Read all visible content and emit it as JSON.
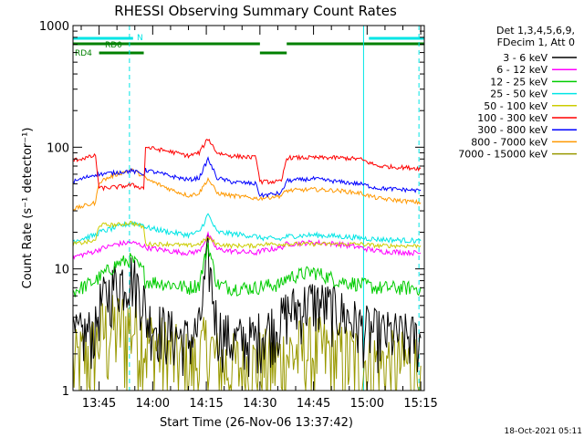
{
  "chart_data": {
    "type": "line",
    "title": "RHESSI Observing Summary Count Rates",
    "xlabel": "Start Time (26-Nov-06 13:37:42)",
    "ylabel": "Count Rate (s⁻¹ detector⁻¹)",
    "yscale": "log",
    "ylim": [
      1,
      1000
    ],
    "xlim": [
      "13:37:42",
      "15:16:00"
    ],
    "x_tick_labels": [
      "13:45",
      "14:00",
      "14:15",
      "14:30",
      "14:45",
      "15:00",
      "15:15"
    ],
    "y_tick_labels": [
      "1",
      "10",
      "100",
      "1000"
    ],
    "grid": false,
    "legend_header": [
      "Det 1,3,4,5,6,9,",
      "FDecim 1, Att 0"
    ],
    "legend_position": "right",
    "footer_timestamp": "18-Oct-2021 05:11",
    "flags": [
      {
        "label": "N",
        "color": "#00e5e5",
        "segments": [
          [
            "13:37:42",
            "13:54:30"
          ],
          [
            "15:00:30",
            "15:16:00"
          ]
        ]
      },
      {
        "label": "RD0",
        "color": "#008000",
        "segments": [
          [
            "13:37:42",
            "14:30:00"
          ],
          [
            "14:37:30",
            "15:16:00"
          ]
        ]
      },
      {
        "label": "RD4",
        "color": "#008000",
        "segments": [
          [
            "13:45:00",
            "13:57:30"
          ],
          [
            "14:30:00",
            "14:37:30"
          ]
        ]
      }
    ],
    "vertical_markers": [
      {
        "time": "13:37:42",
        "style": "solid",
        "color": "#00e5e5"
      },
      {
        "time": "13:53:30",
        "style": "dashed",
        "color": "#00e5e5"
      },
      {
        "time": "14:59:00",
        "style": "solid",
        "color": "#00e5e5"
      },
      {
        "time": "15:14:30",
        "style": "dashed",
        "color": "#00e5e5"
      }
    ],
    "x": [
      "13:37:42",
      "13:44:00",
      "13:45:00",
      "13:50:00",
      "13:54:00",
      "13:57:30",
      "13:58:00",
      "14:05:00",
      "14:10:00",
      "14:13:00",
      "14:15:30",
      "14:18:00",
      "14:22:00",
      "14:29:00",
      "14:30:00",
      "14:36:00",
      "14:37:30",
      "14:45:00",
      "14:52:00",
      "14:58:00",
      "15:03:00",
      "15:15:00"
    ],
    "series": [
      {
        "name": "3 - 6 keV",
        "color": "#000000",
        "values": [
          2.7,
          3.2,
          5,
          8,
          9,
          6,
          4,
          3,
          2.6,
          3.2,
          13,
          3.4,
          2.6,
          2.7,
          3,
          3.8,
          4.5,
          5.5,
          4.6,
          3.4,
          3,
          2.7
        ]
      },
      {
        "name": "6 - 12 keV",
        "color": "#ff00ff",
        "values": [
          12.5,
          14,
          14.5,
          16,
          16.5,
          15.5,
          15,
          14,
          13.5,
          14,
          19,
          14.5,
          14,
          13.5,
          14,
          15,
          16,
          16.5,
          16,
          15,
          14,
          13.5
        ]
      },
      {
        "name": "12 - 25 keV",
        "color": "#00cc00",
        "values": [
          6.5,
          8,
          8.5,
          11,
          12,
          9.5,
          8,
          7.5,
          7,
          7.5,
          16,
          7.5,
          7,
          7,
          7.2,
          7.5,
          8.5,
          9.5,
          8,
          7.5,
          7,
          7
        ]
      },
      {
        "name": "25 - 50 keV",
        "color": "#00e5e5",
        "values": [
          17,
          19,
          20,
          22,
          24,
          23,
          22,
          20,
          19,
          20,
          28,
          20,
          19.5,
          18.5,
          18,
          17.5,
          18.5,
          19,
          18.5,
          18,
          17.5,
          17
        ]
      },
      {
        "name": "50 - 100 keV",
        "color": "#cccc00",
        "values": [
          16,
          17,
          23,
          23,
          24,
          22,
          16,
          16,
          15.5,
          16,
          18,
          16,
          15.5,
          15.5,
          16,
          16,
          16,
          16,
          16,
          16,
          15.5,
          15.5
        ]
      },
      {
        "name": "100 - 300 keV",
        "color": "#ff0000",
        "values": [
          78,
          85,
          46,
          47,
          49,
          46,
          100,
          92,
          85,
          90,
          118,
          90,
          85,
          82,
          52,
          52,
          82,
          82,
          82,
          80,
          70,
          67
        ]
      },
      {
        "name": "300 - 800 keV",
        "color": "#0000ff",
        "values": [
          52,
          60,
          60,
          62,
          64,
          60,
          65,
          58,
          54,
          56,
          80,
          56,
          52,
          50,
          40,
          42,
          53,
          55,
          52,
          50,
          46,
          44
        ]
      },
      {
        "name": "800 - 7000 keV",
        "color": "#ff9900",
        "values": [
          31,
          35,
          52,
          60,
          65,
          58,
          55,
          45,
          40,
          42,
          55,
          42,
          40,
          38,
          38,
          40,
          44,
          45,
          44,
          42,
          38,
          35
        ]
      },
      {
        "name": "7000 - 15000 keV",
        "color": "#999900",
        "values": [
          1.6,
          2.3,
          3,
          3.4,
          3.6,
          3,
          2.6,
          2,
          1.6,
          1.8,
          2.5,
          1.7,
          1.6,
          1.6,
          1.7,
          1.8,
          2,
          2.2,
          2,
          1.8,
          1.7,
          1.6
        ]
      }
    ]
  }
}
